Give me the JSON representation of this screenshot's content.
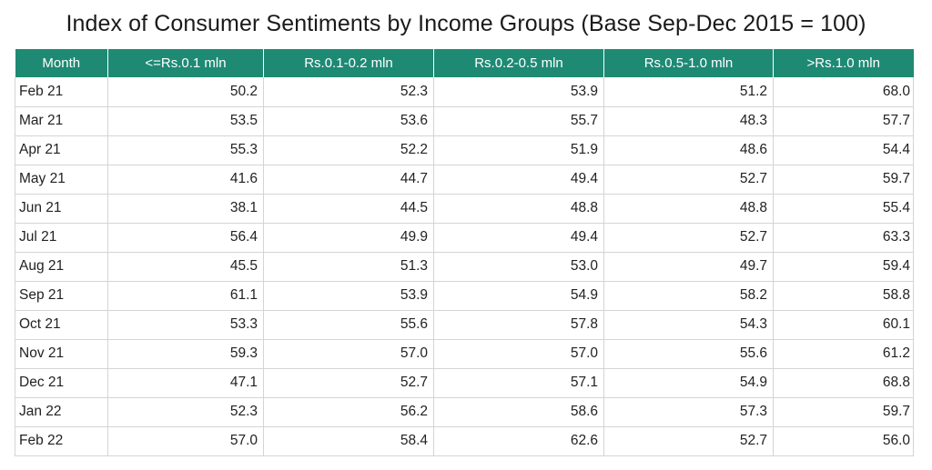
{
  "chart_data": {
    "type": "table",
    "title": "Index of Consumer Sentiments by Income Groups (Base Sep-Dec 2015 = 100)",
    "columns": [
      "Month",
      "<=Rs.0.1 mln",
      "Rs.0.1-0.2 mln",
      "Rs.0.2-0.5 mln",
      "Rs.0.5-1.0 mln",
      ">Rs.1.0 mln"
    ],
    "rows": [
      [
        "Feb 21",
        "50.2",
        "52.3",
        "53.9",
        "51.2",
        "68.0"
      ],
      [
        "Mar 21",
        "53.5",
        "53.6",
        "55.7",
        "48.3",
        "57.7"
      ],
      [
        "Apr 21",
        "55.3",
        "52.2",
        "51.9",
        "48.6",
        "54.4"
      ],
      [
        "May 21",
        "41.6",
        "44.7",
        "49.4",
        "52.7",
        "59.7"
      ],
      [
        "Jun 21",
        "38.1",
        "44.5",
        "48.8",
        "48.8",
        "55.4"
      ],
      [
        "Jul 21",
        "56.4",
        "49.9",
        "49.4",
        "52.7",
        "63.3"
      ],
      [
        "Aug 21",
        "45.5",
        "51.3",
        "53.0",
        "49.7",
        "59.4"
      ],
      [
        "Sep 21",
        "61.1",
        "53.9",
        "54.9",
        "58.2",
        "58.8"
      ],
      [
        "Oct 21",
        "53.3",
        "55.6",
        "57.8",
        "54.3",
        "60.1"
      ],
      [
        "Nov 21",
        "59.3",
        "57.0",
        "57.0",
        "55.6",
        "61.2"
      ],
      [
        "Dec 21",
        "47.1",
        "52.7",
        "57.1",
        "54.9",
        "68.8"
      ],
      [
        "Jan 22",
        "52.3",
        "56.2",
        "58.6",
        "57.3",
        "59.7"
      ],
      [
        "Feb 22",
        "57.0",
        "58.4",
        "62.6",
        "52.7",
        "56.0"
      ]
    ],
    "header_color": "#1e8a74"
  }
}
